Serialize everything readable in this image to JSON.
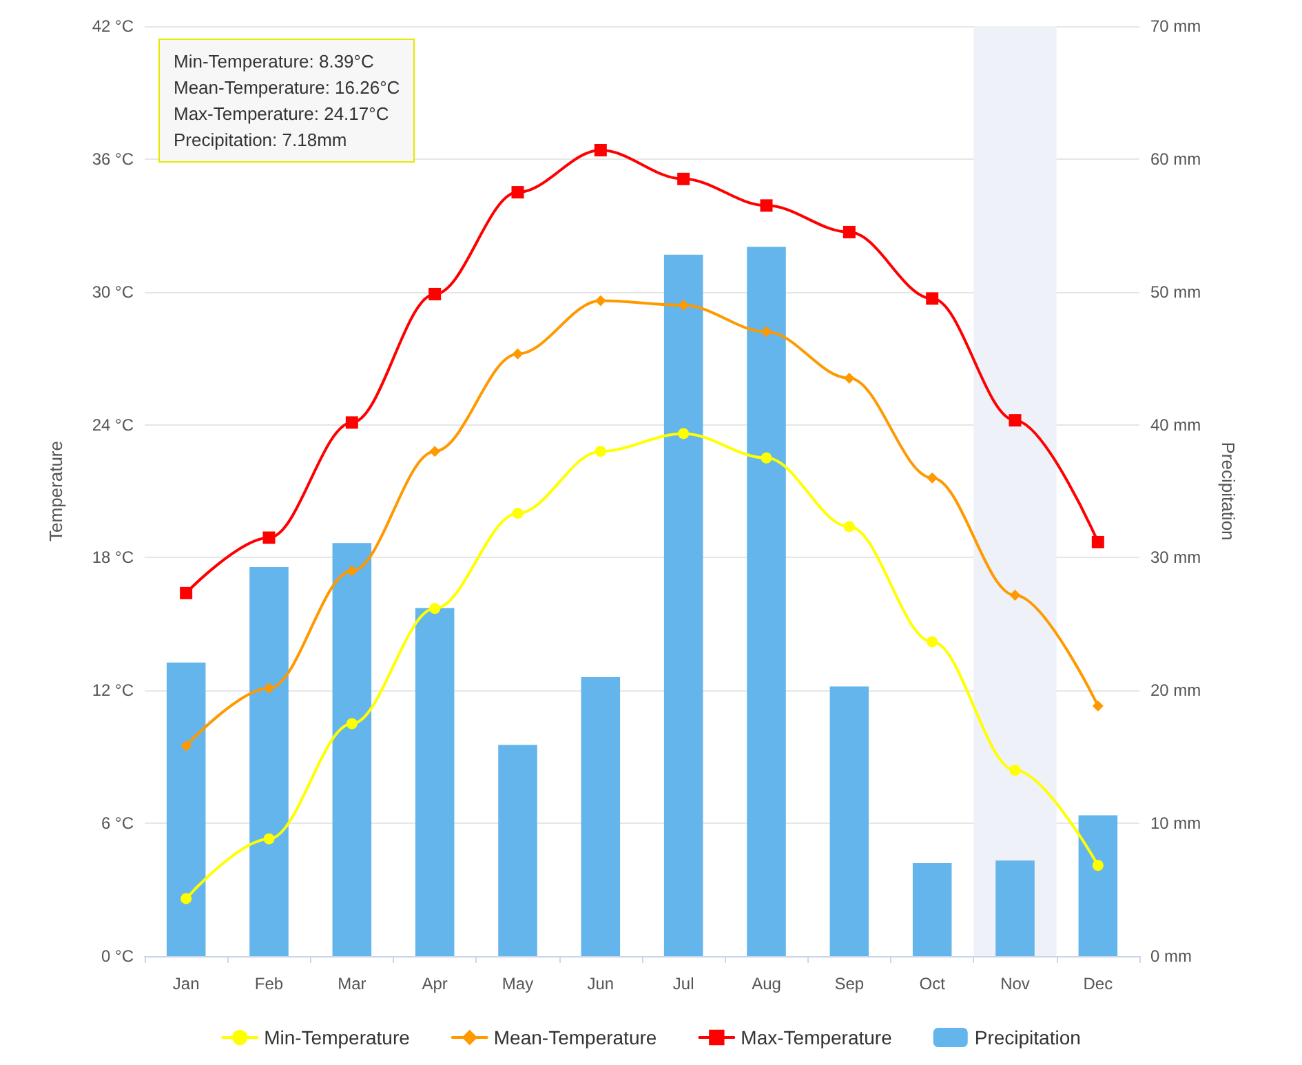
{
  "chart_data": {
    "type": "line",
    "categories": [
      "Jan",
      "Feb",
      "Mar",
      "Apr",
      "May",
      "Jun",
      "Jul",
      "Aug",
      "Sep",
      "Oct",
      "Nov",
      "Dec"
    ],
    "ylabel": "Temperature",
    "y2label": "Precipitation",
    "series": [
      {
        "name": "Min-Temperature",
        "color": "#ffff00",
        "marker": "circle",
        "values": [
          2.6,
          5.3,
          10.5,
          15.7,
          20.0,
          22.8,
          23.6,
          22.5,
          19.4,
          14.2,
          8.4,
          4.1
        ]
      },
      {
        "name": "Mean-Temperature",
        "color": "#ff9900",
        "marker": "diamond",
        "values": [
          9.5,
          12.1,
          17.4,
          22.8,
          27.2,
          29.6,
          29.4,
          28.2,
          26.1,
          21.6,
          16.3,
          11.3
        ]
      },
      {
        "name": "Max-Temperature",
        "color": "#ff0000",
        "marker": "square",
        "values": [
          16.4,
          18.9,
          24.1,
          29.9,
          34.5,
          36.4,
          35.1,
          33.9,
          32.7,
          29.7,
          24.2,
          18.7
        ]
      },
      {
        "name": "Precipitation",
        "type": "bar",
        "axis": "y2",
        "color": "#64b5ec",
        "values": [
          22.1,
          29.3,
          31.1,
          26.2,
          15.9,
          21.0,
          52.8,
          53.4,
          20.3,
          7.0,
          7.2,
          10.6
        ]
      }
    ],
    "ylim": [
      0,
      42
    ],
    "yticks": [
      {
        "value": 0,
        "label": "0 °C"
      },
      {
        "value": 6,
        "label": "6 °C"
      },
      {
        "value": 12,
        "label": "12 °C"
      },
      {
        "value": 18,
        "label": "18 °C"
      },
      {
        "value": 24,
        "label": "24 °C"
      },
      {
        "value": 30,
        "label": "30 °C"
      },
      {
        "value": 36,
        "label": "36 °C"
      },
      {
        "value": 42,
        "label": "42 °C"
      }
    ],
    "y2lim": [
      0,
      70
    ],
    "y2ticks": [
      {
        "value": 0,
        "label": "0 mm"
      },
      {
        "value": 10,
        "label": "10 mm"
      },
      {
        "value": 20,
        "label": "20 mm"
      },
      {
        "value": 30,
        "label": "30 mm"
      },
      {
        "value": 40,
        "label": "40 mm"
      },
      {
        "value": 50,
        "label": "50 mm"
      },
      {
        "value": 60,
        "label": "60 mm"
      },
      {
        "value": 70,
        "label": "70 mm"
      }
    ],
    "bands": [
      {
        "axis": "x",
        "from": "Nov",
        "to": "Nov",
        "color": "#eef1f7"
      }
    ],
    "annotations": [
      "Min-Temperature: 8.39°C",
      "Mean-Temperature: 16.26°C",
      "Max-Temperature: 24.17°C",
      "Precipitation: 7.18mm"
    ],
    "grid": "y",
    "legend": "bottom",
    "line_style": "solid"
  }
}
